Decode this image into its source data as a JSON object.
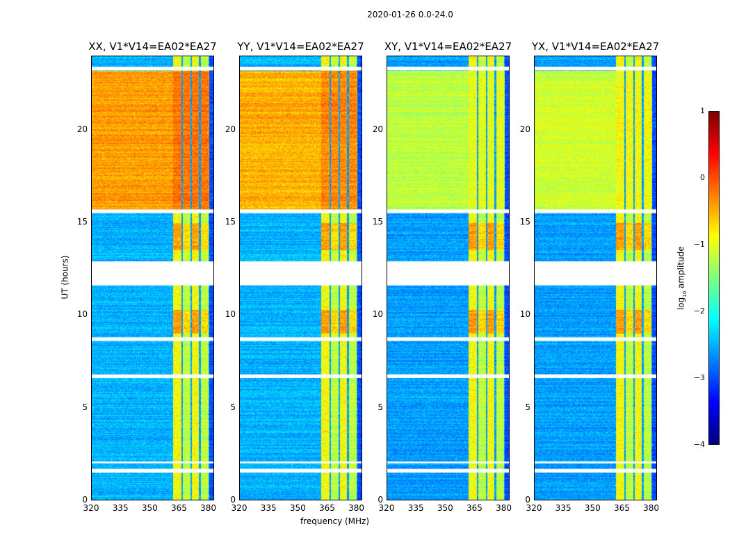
{
  "chart_data": {
    "type": "heatmap",
    "suptitle": "2020-01-26 0.0-24.0",
    "xlabel": "frequency (MHz)",
    "ylabel": "UT (hours)",
    "xlim": [
      320,
      383
    ],
    "ylim": [
      0,
      24
    ],
    "xticks": [
      "320",
      "335",
      "350",
      "365",
      "380"
    ],
    "xtick_values": [
      320,
      335,
      350,
      365,
      380
    ],
    "yticks": [
      "0",
      "5",
      "10",
      "15",
      "20"
    ],
    "ytick_values": [
      0,
      5,
      10,
      15,
      20
    ],
    "panels": [
      {
        "title": "XX, V1*V14=EA02*EA27",
        "polarization": "XX",
        "day_level": -0.4,
        "night_level": -2.5
      },
      {
        "title": "YY, V1*V14=EA02*EA27",
        "polarization": "YY",
        "day_level": -0.5,
        "night_level": -2.5
      },
      {
        "title": "XY, V1*V14=EA02*EA27",
        "polarization": "XY",
        "day_level": -1.2,
        "night_level": -2.6
      },
      {
        "title": "YX, V1*V14=EA02*EA27",
        "polarization": "YX",
        "day_level": -1.1,
        "night_level": -2.6
      }
    ],
    "flagged_time_ranges_hours": [
      [
        11.6,
        12.9
      ],
      [
        15.5,
        15.7
      ],
      [
        23.2,
        23.4
      ],
      [
        8.6,
        8.8
      ],
      [
        6.6,
        6.8
      ],
      [
        1.5,
        1.7
      ],
      [
        2.0,
        2.1
      ]
    ],
    "rfi_band_mhz": [
      362,
      380
    ],
    "colorbar": {
      "label": "log10 amplitude",
      "ticks": [
        "1",
        "0",
        "−1",
        "−2",
        "−3",
        "−4"
      ],
      "tick_values": [
        1,
        0,
        -1,
        -2,
        -3,
        -4
      ],
      "range": [
        -4,
        1
      ],
      "colormap": "jet"
    }
  }
}
